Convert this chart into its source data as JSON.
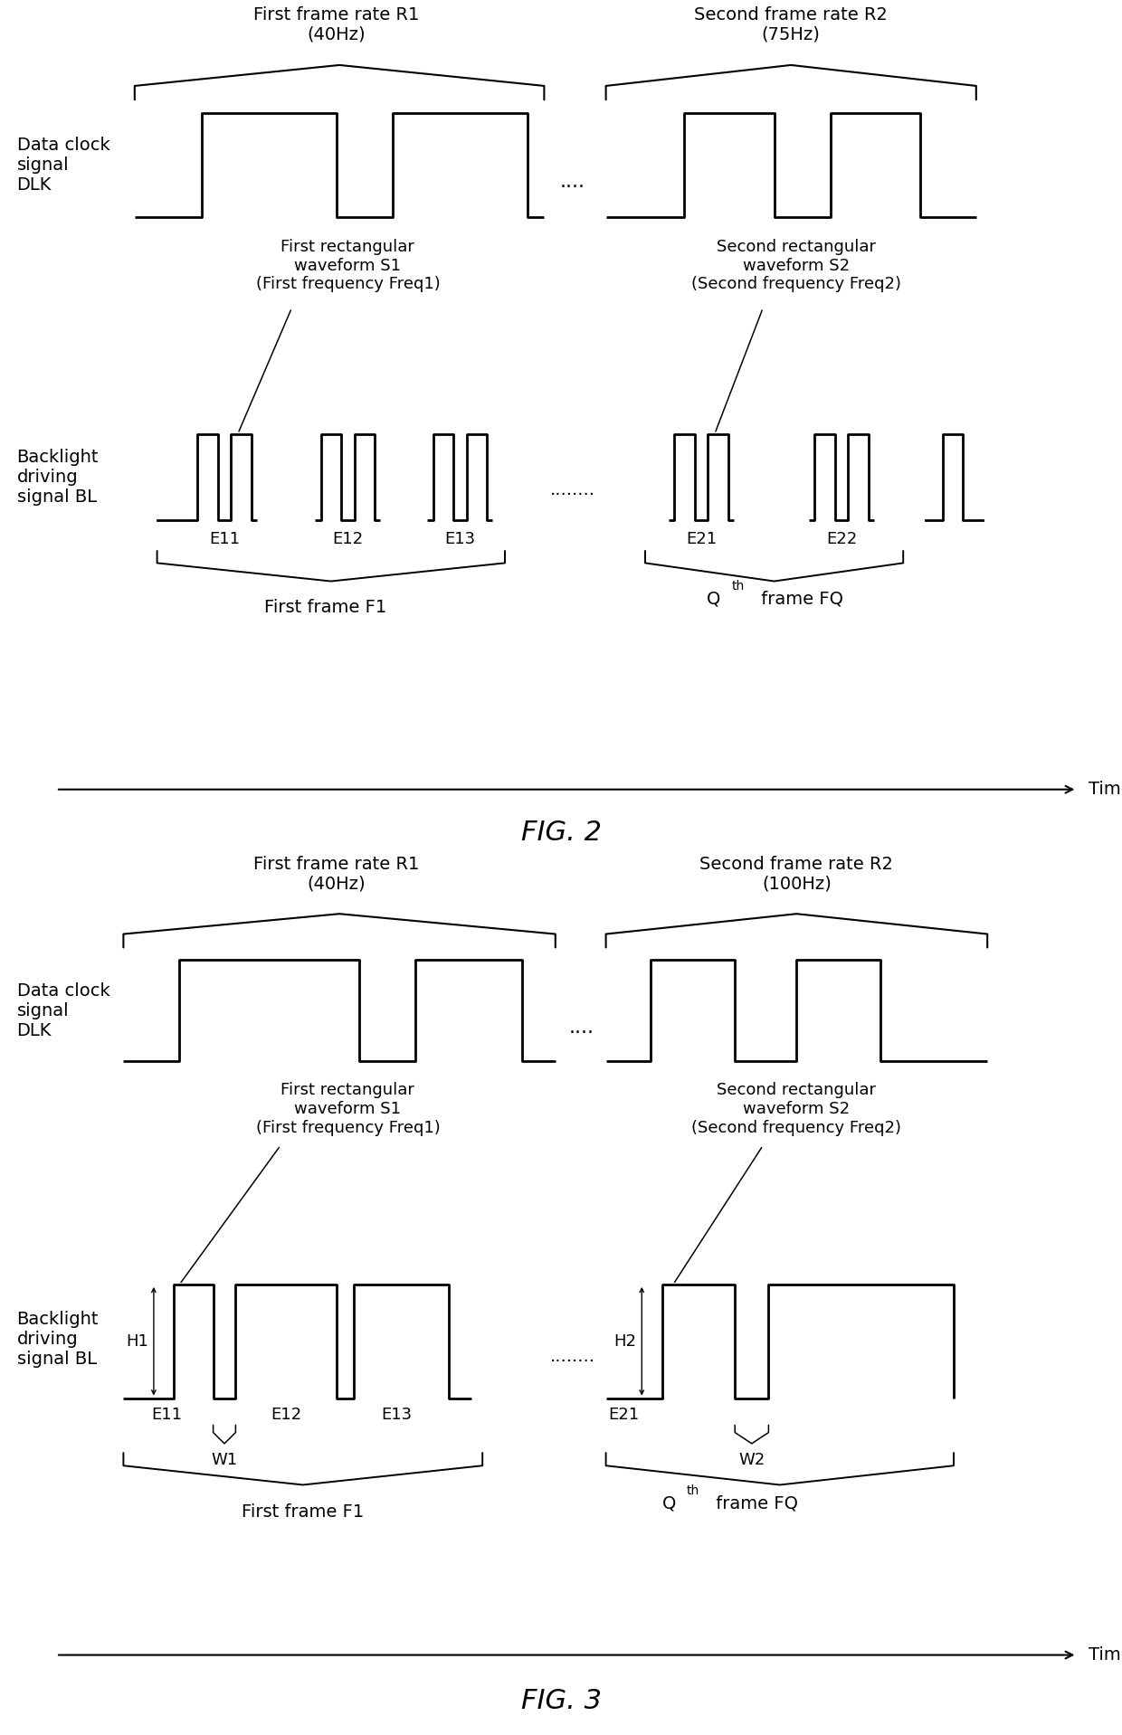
{
  "fig2": {
    "title": "FIG. 2",
    "r1_label": "First frame rate R1\n(40Hz)",
    "r2_label": "Second frame rate R2\n(75Hz)",
    "dlk_label": "Data clock\nsignal\nDLK",
    "bl_label": "Backlight\ndriving\nsignal BL",
    "waveform_s1_label": "First rectangular\nwaveform S1\n(First frequency Freq1)",
    "waveform_s2_label": "Second rectangular\nwaveform S2\n(Second frequency Freq2)",
    "frame_f1_label": "First frame F1",
    "time_label": "Time",
    "dots_dlk": "....",
    "dots_bl": "........"
  },
  "fig3": {
    "title": "FIG. 3",
    "r1_label": "First frame rate R1\n(40Hz)",
    "r2_label": "Second frame rate R2\n(100Hz)",
    "dlk_label": "Data clock\nsignal\nDLK",
    "bl_label": "Backlight\ndriving\nsignal BL",
    "waveform_s1_label": "First rectangular\nwaveform S1\n(First frequency Freq1)",
    "waveform_s2_label": "Second rectangular\nwaveform S2\n(Second frequency Freq2)",
    "frame_f1_label": "First frame F1",
    "time_label": "Time",
    "dots_dlk": "....",
    "dots_bl": "........"
  },
  "bg_color": "#ffffff",
  "line_color": "#000000",
  "font_size": 14,
  "title_font_size": 22
}
